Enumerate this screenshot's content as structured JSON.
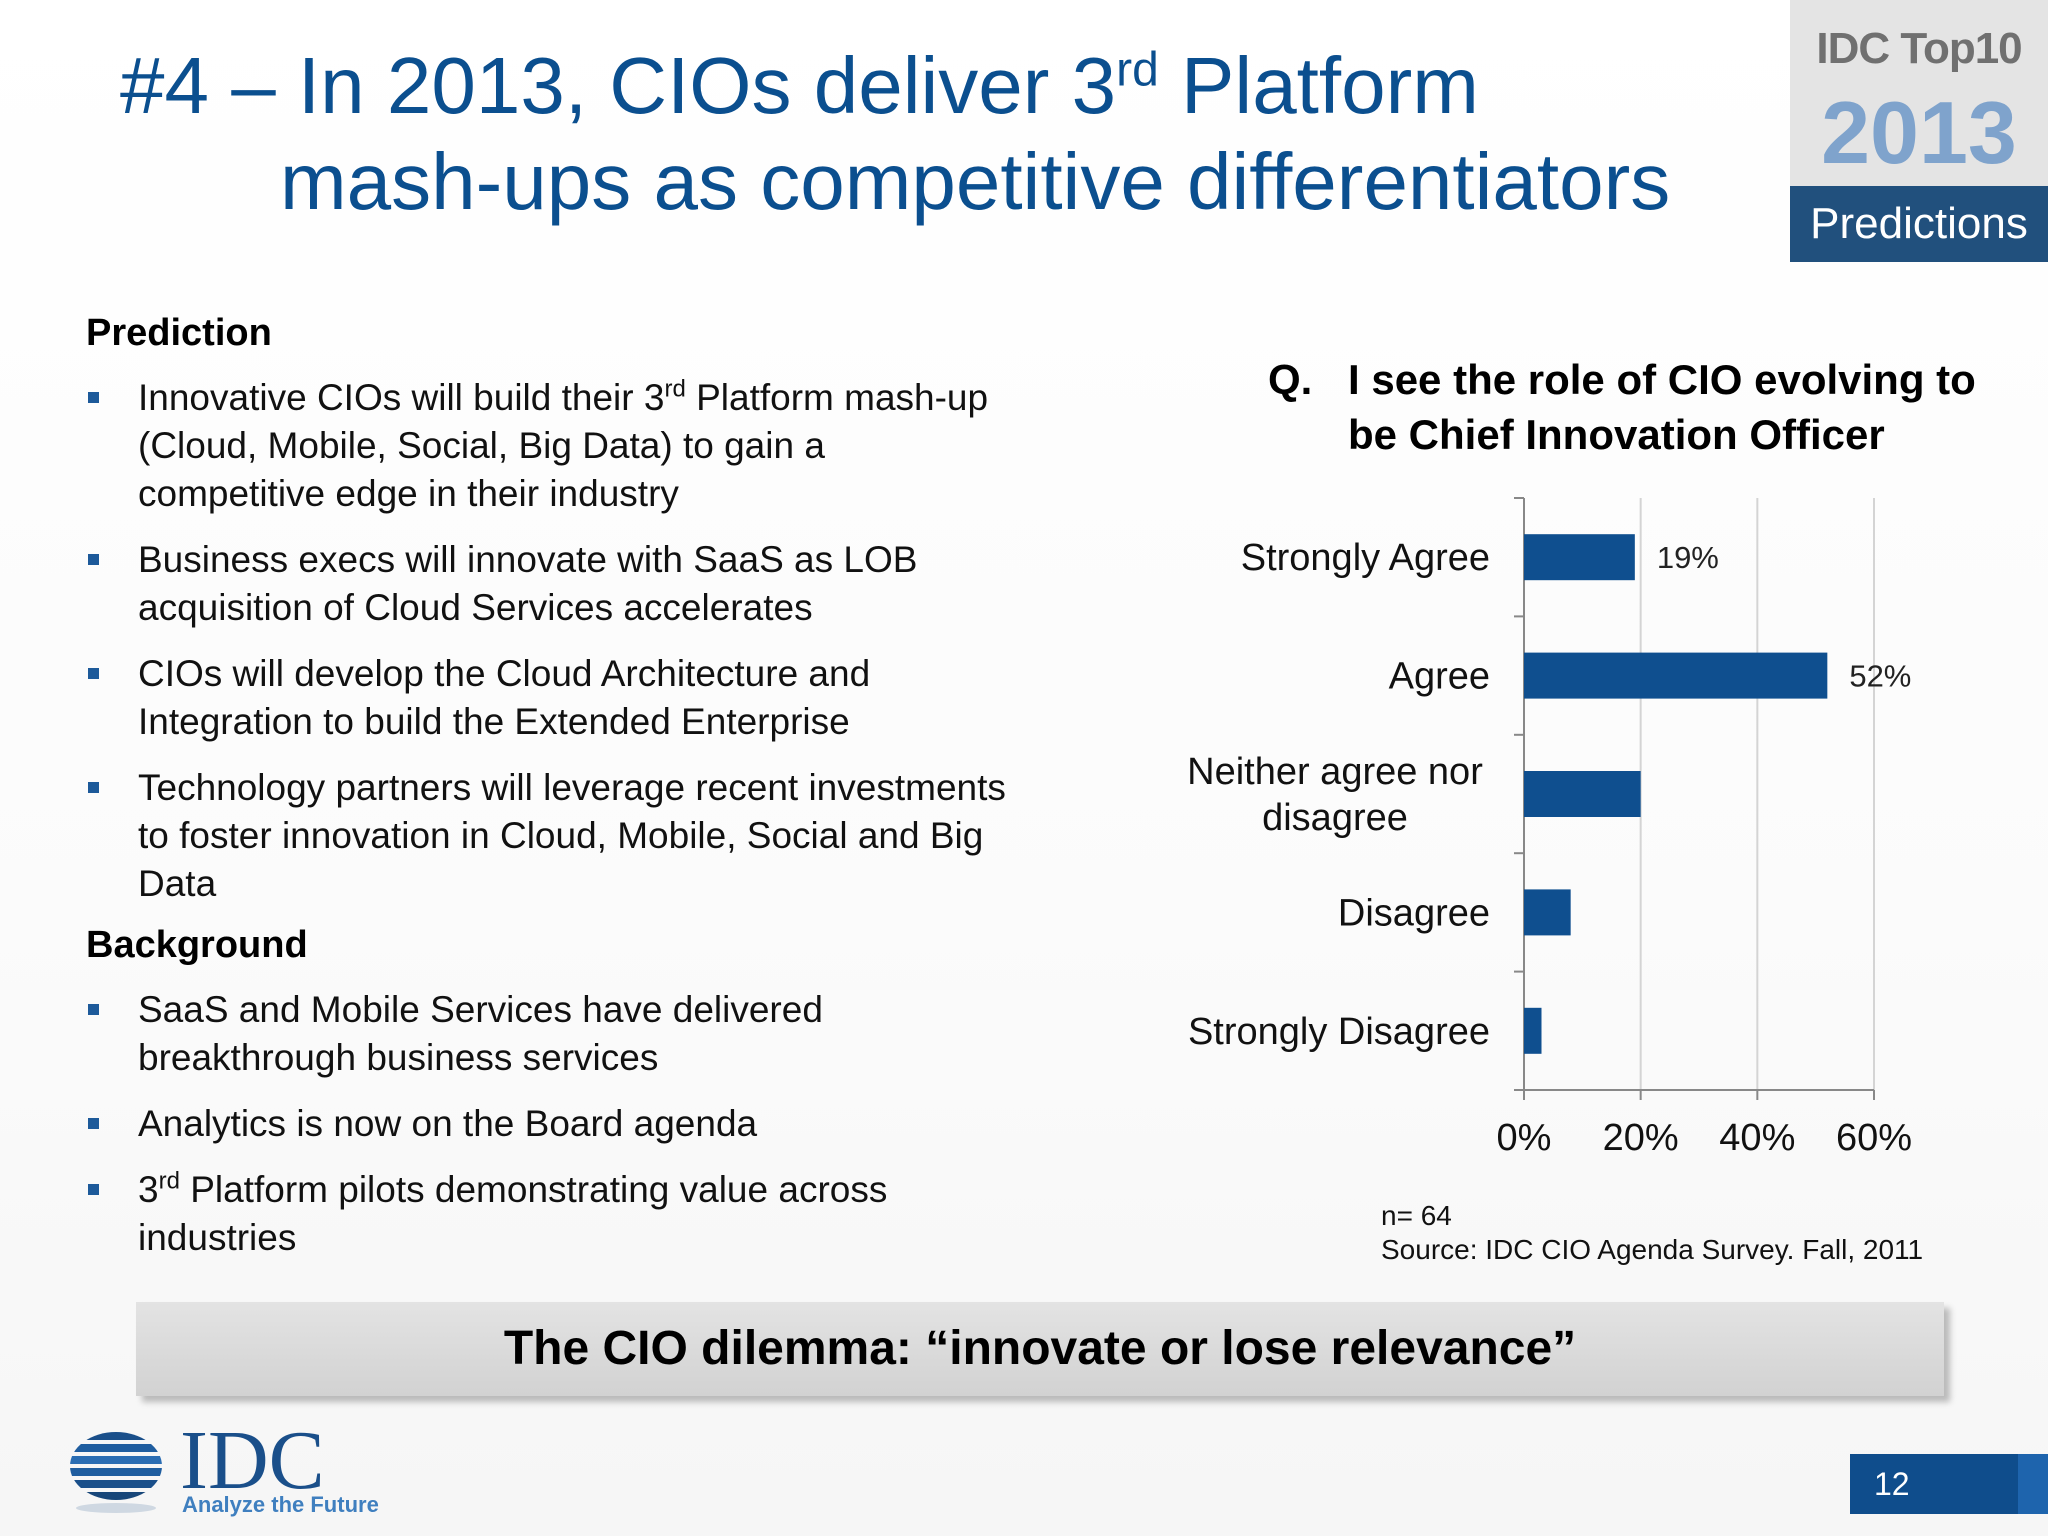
{
  "title": {
    "prefix": "#4 – In 2013, CIOs deliver 3",
    "sup": "rd",
    "suffix": " Platform",
    "line2": "mash-ups as competitive differentiators"
  },
  "badge": {
    "top": "IDC Top10",
    "year": "2013",
    "label": "Predictions"
  },
  "prediction": {
    "heading": "Prediction",
    "items": [
      {
        "pre": "Innovative CIOs will build their 3",
        "sup": "rd",
        "post": " Platform mash-up (Cloud, Mobile, Social, Big Data) to gain a competitive edge in their industry"
      },
      {
        "pre": "Business execs will innovate with SaaS as LOB acquisition of Cloud Services accelerates",
        "sup": "",
        "post": ""
      },
      {
        "pre": "CIOs will develop the Cloud Architecture and Integration to build the Extended Enterprise",
        "sup": "",
        "post": ""
      },
      {
        "pre": "Technology partners will leverage recent investments to foster innovation in Cloud, Mobile, Social and Big Data",
        "sup": "",
        "post": ""
      }
    ]
  },
  "background": {
    "heading": "Background",
    "items": [
      {
        "pre": "SaaS and Mobile Services have delivered breakthrough business services",
        "sup": "",
        "post": ""
      },
      {
        "pre": "Analytics is now on the Board agenda",
        "sup": "",
        "post": ""
      },
      {
        "pre": "3",
        "sup": "rd",
        "post": " Platform pilots demonstrating value across industries"
      }
    ]
  },
  "question": {
    "q": "Q.",
    "text": "I see the role of CIO evolving to be Chief Innovation Officer"
  },
  "chart_data": {
    "type": "bar",
    "orientation": "horizontal",
    "categories": [
      "Strongly Agree",
      "Agree",
      "Neither agree nor disagree",
      "Disagree",
      "Strongly Disagree"
    ],
    "values": [
      19,
      52,
      20,
      8,
      3
    ],
    "data_labels": [
      "19%",
      "52%",
      "",
      "",
      ""
    ],
    "xlim": [
      0,
      60
    ],
    "xticks": [
      "0%",
      "20%",
      "40%",
      "60%"
    ],
    "bar_color": "#0f4f8f",
    "grid": true
  },
  "notes": {
    "n": "n= 64",
    "source": "Source: IDC CIO Agenda Survey. Fall, 2011"
  },
  "banner": "The CIO dilemma:  “innovate or lose relevance”",
  "logo": {
    "word": "IDC",
    "tagline": "Analyze the Future"
  },
  "page_number": "12"
}
